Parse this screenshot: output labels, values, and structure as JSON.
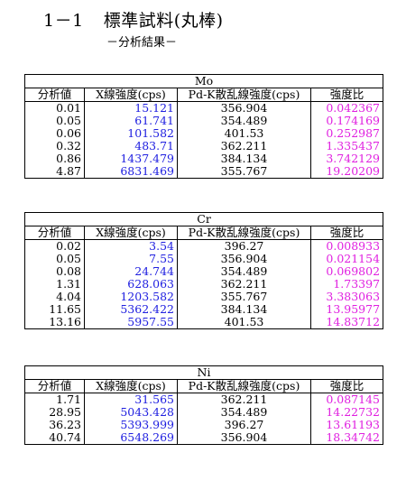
{
  "title": {
    "number": "1－1",
    "text": "標準試料(丸棒)"
  },
  "subtitle": "－分析結果－",
  "headers": [
    "分析値",
    "X線強度(cps)",
    "Pd-K散乱線強度(cps)",
    "強度比"
  ],
  "colors": {
    "xray": "#2020e0",
    "ratio": "#e020e0"
  },
  "tables": [
    {
      "element": "Mo",
      "rows": [
        [
          "0.01",
          "15.121",
          "356.904",
          "0.042367"
        ],
        [
          "0.05",
          "61.741",
          "354.489",
          "0.174169"
        ],
        [
          "0.06",
          "101.582",
          "401.53",
          "0.252987"
        ],
        [
          "0.32",
          "483.71",
          "362.211",
          "1.335437"
        ],
        [
          "0.86",
          "1437.479",
          "384.134",
          "3.742129"
        ],
        [
          "4.87",
          "6831.469",
          "355.767",
          "19.20209"
        ]
      ]
    },
    {
      "element": "Cr",
      "rows": [
        [
          "0.02",
          "3.54",
          "396.27",
          "0.008933"
        ],
        [
          "0.05",
          "7.55",
          "356.904",
          "0.021154"
        ],
        [
          "0.08",
          "24.744",
          "354.489",
          "0.069802"
        ],
        [
          "1.31",
          "628.063",
          "362.211",
          "1.73397"
        ],
        [
          "4.04",
          "1203.582",
          "355.767",
          "3.383063"
        ],
        [
          "11.65",
          "5362.422",
          "384.134",
          "13.95977"
        ],
        [
          "13.16",
          "5957.55",
          "401.53",
          "14.83712"
        ]
      ]
    },
    {
      "element": "Ni",
      "rows": [
        [
          "1.71",
          "31.565",
          "362.211",
          "0.087145"
        ],
        [
          "28.95",
          "5043.428",
          "354.489",
          "14.22732"
        ],
        [
          "36.23",
          "5393.999",
          "396.27",
          "13.61193"
        ],
        [
          "40.74",
          "6548.269",
          "356.904",
          "18.34742"
        ]
      ]
    }
  ]
}
